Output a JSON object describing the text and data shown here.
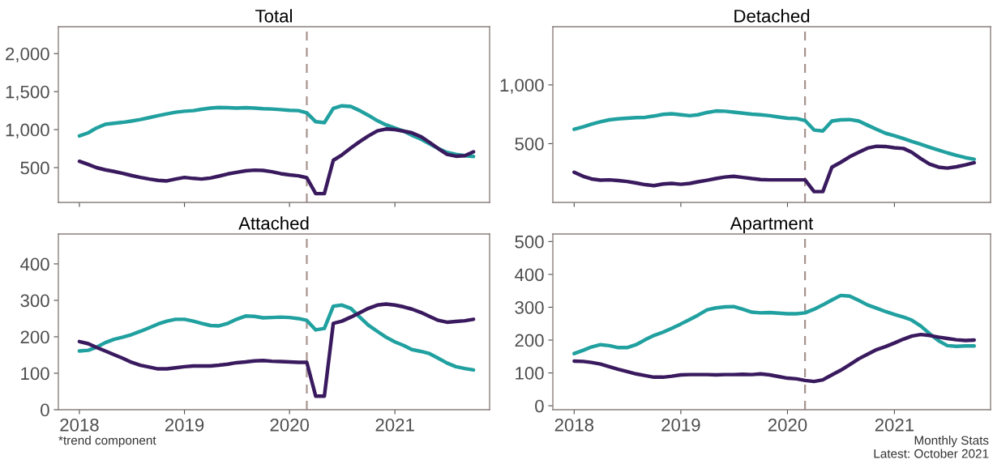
{
  "chart_data": [
    {
      "type": "line",
      "title": "Total",
      "xlim": [
        "2017-10-20",
        "2021-11-26"
      ],
      "xticks": [
        "2018",
        "2019",
        "2020",
        "2021"
      ],
      "tick_labels": "y",
      "ylim": [
        42,
        2354
      ],
      "yticks": [
        {
          "value": 500,
          "label": "500"
        },
        {
          "value": 1000,
          "label": "1,000"
        },
        {
          "value": 1500,
          "label": "1,500"
        },
        {
          "value": 2000,
          "label": "2,000"
        }
      ],
      "grid": false,
      "line_style": "solid",
      "marker": "none",
      "x": [
        "2018-01",
        "2018-02",
        "2018-03",
        "2018-04",
        "2018-05",
        "2018-06",
        "2018-07",
        "2018-08",
        "2018-09",
        "2018-10",
        "2018-11",
        "2018-12",
        "2019-01",
        "2019-02",
        "2019-03",
        "2019-04",
        "2019-05",
        "2019-06",
        "2019-07",
        "2019-08",
        "2019-09",
        "2019-10",
        "2019-11",
        "2019-12",
        "2020-01",
        "2020-02",
        "2020-03",
        "2020-04",
        "2020-05",
        "2020-06",
        "2020-07",
        "2020-08",
        "2020-09",
        "2020-10",
        "2020-11",
        "2020-12",
        "2021-01",
        "2021-02",
        "2021-03",
        "2021-04",
        "2021-05",
        "2021-06",
        "2021-07",
        "2021-08",
        "2021-09",
        "2021-10"
      ],
      "ref_lines": [
        {
          "axis": "x",
          "value": "2020-03",
          "color": "#a89490",
          "line_style": "dashed"
        }
      ],
      "series": [
        {
          "color": "#21a0a0",
          "values": [
            917,
            958,
            1020,
            1071,
            1083,
            1096,
            1113,
            1133,
            1158,
            1183,
            1208,
            1229,
            1242,
            1250,
            1267,
            1283,
            1292,
            1288,
            1283,
            1288,
            1283,
            1275,
            1271,
            1263,
            1254,
            1250,
            1221,
            1104,
            1092,
            1279,
            1313,
            1304,
            1250,
            1188,
            1117,
            1063,
            1021,
            979,
            925,
            875,
            813,
            750,
            700,
            675,
            658,
            646
          ]
        },
        {
          "color": "#3a1a5e",
          "values": [
            583,
            542,
            500,
            471,
            450,
            425,
            396,
            371,
            350,
            333,
            325,
            350,
            371,
            358,
            350,
            363,
            388,
            417,
            438,
            458,
            467,
            463,
            446,
            421,
            404,
            392,
            367,
            158,
            158,
            596,
            667,
            758,
            842,
            917,
            983,
            1008,
            1000,
            979,
            958,
            908,
            833,
            750,
            675,
            650,
            658,
            708
          ]
        }
      ]
    },
    {
      "type": "line",
      "title": "Detached",
      "xlim": [
        "2017-10-20",
        "2021-11-26"
      ],
      "xticks": [
        "2018",
        "2019",
        "2020",
        "2021"
      ],
      "tick_labels": "y",
      "ylim": [
        0,
        1495
      ],
      "yticks": [
        {
          "value": 500,
          "label": "500"
        },
        {
          "value": 1000,
          "label": "1,000"
        }
      ],
      "grid": false,
      "line_style": "solid",
      "marker": "none",
      "x": [
        "2018-01",
        "2018-02",
        "2018-03",
        "2018-04",
        "2018-05",
        "2018-06",
        "2018-07",
        "2018-08",
        "2018-09",
        "2018-10",
        "2018-11",
        "2018-12",
        "2019-01",
        "2019-02",
        "2019-03",
        "2019-04",
        "2019-05",
        "2019-06",
        "2019-07",
        "2019-08",
        "2019-09",
        "2019-10",
        "2019-11",
        "2019-12",
        "2020-01",
        "2020-02",
        "2020-03",
        "2020-04",
        "2020-05",
        "2020-06",
        "2020-07",
        "2020-08",
        "2020-09",
        "2020-10",
        "2020-11",
        "2020-12",
        "2021-01",
        "2021-02",
        "2021-03",
        "2021-04",
        "2021-05",
        "2021-06",
        "2021-07",
        "2021-08",
        "2021-09",
        "2021-10"
      ],
      "ref_lines": [
        {
          "axis": "x",
          "value": "2020-03",
          "color": "#a89490",
          "line_style": "dashed"
        }
      ],
      "series": [
        {
          "color": "#21a0a0",
          "values": [
            622,
            643,
            665,
            686,
            703,
            711,
            716,
            722,
            724,
            735,
            749,
            754,
            746,
            738,
            746,
            765,
            778,
            776,
            768,
            759,
            751,
            746,
            738,
            727,
            716,
            714,
            697,
            616,
            608,
            692,
            703,
            705,
            692,
            657,
            622,
            589,
            568,
            543,
            519,
            495,
            470,
            446,
            422,
            400,
            381,
            368
          ]
        },
        {
          "color": "#3a1a5e",
          "values": [
            257,
            222,
            200,
            189,
            192,
            186,
            178,
            165,
            151,
            143,
            157,
            162,
            154,
            162,
            176,
            189,
            203,
            216,
            222,
            213,
            203,
            195,
            192,
            192,
            192,
            192,
            192,
            92,
            92,
            300,
            341,
            389,
            427,
            462,
            478,
            476,
            465,
            459,
            427,
            373,
            327,
            300,
            292,
            303,
            319,
            338
          ]
        }
      ]
    },
    {
      "type": "line",
      "title": "Attached",
      "xlim": [
        "2017-10-20",
        "2021-11-26"
      ],
      "xticks": [
        "2018",
        "2019",
        "2020",
        "2021"
      ],
      "ylim": [
        0,
        482
      ],
      "yticks": [
        0,
        100,
        200,
        300,
        400
      ],
      "grid": false,
      "line_style": "solid",
      "marker": "none",
      "x": [
        "2018-01",
        "2018-02",
        "2018-03",
        "2018-04",
        "2018-05",
        "2018-06",
        "2018-07",
        "2018-08",
        "2018-09",
        "2018-10",
        "2018-11",
        "2018-12",
        "2019-01",
        "2019-02",
        "2019-03",
        "2019-04",
        "2019-05",
        "2019-06",
        "2019-07",
        "2019-08",
        "2019-09",
        "2019-10",
        "2019-11",
        "2019-12",
        "2020-01",
        "2020-02",
        "2020-03",
        "2020-04",
        "2020-05",
        "2020-06",
        "2020-07",
        "2020-08",
        "2020-09",
        "2020-10",
        "2020-11",
        "2020-12",
        "2021-01",
        "2021-02",
        "2021-03",
        "2021-04",
        "2021-05",
        "2021-06",
        "2021-07",
        "2021-08",
        "2021-09",
        "2021-10"
      ],
      "ref_lines": [
        {
          "axis": "x",
          "value": "2020-03",
          "color": "#a89490",
          "line_style": "dashed"
        }
      ],
      "annotations": [
        "*trend component"
      ],
      "series": [
        {
          "color": "#21a0a0",
          "values": [
            161,
            163,
            171,
            184,
            193,
            199,
            206,
            215,
            225,
            235,
            243,
            248,
            248,
            243,
            237,
            231,
            230,
            237,
            248,
            257,
            256,
            252,
            253,
            254,
            253,
            250,
            245,
            219,
            223,
            284,
            287,
            278,
            254,
            232,
            215,
            199,
            186,
            176,
            165,
            160,
            154,
            141,
            128,
            118,
            113,
            109
          ]
        },
        {
          "color": "#3a1a5e",
          "values": [
            187,
            181,
            171,
            161,
            151,
            141,
            130,
            122,
            117,
            112,
            112,
            115,
            118,
            120,
            120,
            120,
            122,
            125,
            129,
            131,
            134,
            135,
            133,
            132,
            131,
            130,
            130,
            37,
            37,
            237,
            243,
            254,
            266,
            278,
            287,
            290,
            287,
            282,
            276,
            267,
            256,
            245,
            240,
            242,
            244,
            248
          ]
        }
      ]
    },
    {
      "type": "line",
      "title": "Apartment",
      "xlim": [
        "2017-10-20",
        "2021-11-26"
      ],
      "xticks": [
        "2018",
        "2019",
        "2020",
        "2021"
      ],
      "ylim": [
        -12,
        523
      ],
      "yticks": [
        0,
        100,
        200,
        300,
        400,
        500
      ],
      "grid": false,
      "line_style": "solid",
      "marker": "none",
      "x": [
        "2018-01",
        "2018-02",
        "2018-03",
        "2018-04",
        "2018-05",
        "2018-06",
        "2018-07",
        "2018-08",
        "2018-09",
        "2018-10",
        "2018-11",
        "2018-12",
        "2019-01",
        "2019-02",
        "2019-03",
        "2019-04",
        "2019-05",
        "2019-06",
        "2019-07",
        "2019-08",
        "2019-09",
        "2019-10",
        "2019-11",
        "2019-12",
        "2020-01",
        "2020-02",
        "2020-03",
        "2020-04",
        "2020-05",
        "2020-06",
        "2020-07",
        "2020-08",
        "2020-09",
        "2020-10",
        "2020-11",
        "2020-12",
        "2021-01",
        "2021-02",
        "2021-03",
        "2021-04",
        "2021-05",
        "2021-06",
        "2021-07",
        "2021-08",
        "2021-09",
        "2021-10"
      ],
      "ref_lines": [
        {
          "axis": "x",
          "value": "2020-03",
          "color": "#a89490",
          "line_style": "dashed"
        }
      ],
      "annotations": [
        "Monthly Stats\nLatest: October 2021"
      ],
      "series": [
        {
          "color": "#21a0a0",
          "values": [
            159,
            169,
            179,
            186,
            183,
            177,
            177,
            186,
            201,
            214,
            224,
            236,
            249,
            263,
            276,
            292,
            298,
            301,
            302,
            294,
            285,
            283,
            284,
            282,
            280,
            280,
            283,
            294,
            307,
            322,
            336,
            334,
            321,
            307,
            297,
            287,
            278,
            270,
            261,
            243,
            220,
            198,
            183,
            181,
            182,
            182
          ]
        },
        {
          "color": "#3a1a5e",
          "values": [
            136,
            135,
            132,
            127,
            119,
            111,
            104,
            97,
            92,
            87,
            87,
            90,
            94,
            95,
            95,
            95,
            94,
            95,
            95,
            96,
            95,
            97,
            94,
            89,
            84,
            82,
            77,
            74,
            79,
            94,
            108,
            125,
            143,
            157,
            171,
            180,
            191,
            203,
            212,
            217,
            214,
            209,
            205,
            201,
            199,
            200
          ]
        }
      ]
    }
  ]
}
